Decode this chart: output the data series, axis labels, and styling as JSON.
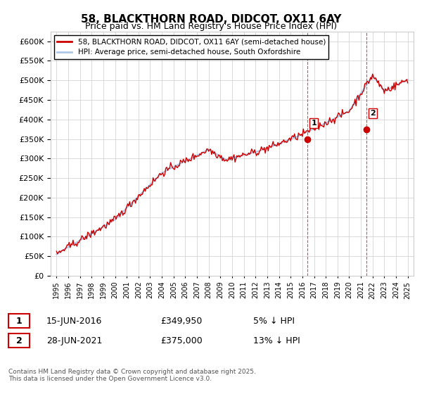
{
  "title": "58, BLACKTHORN ROAD, DIDCOT, OX11 6AY",
  "subtitle": "Price paid vs. HM Land Registry's House Price Index (HPI)",
  "hpi_label": "HPI: Average price, semi-detached house, South Oxfordshire",
  "price_label": "58, BLACKTHORN ROAD, DIDCOT, OX11 6AY (semi-detached house)",
  "legend_entry1": "15-JUN-2016",
  "legend_entry1_price": "£349,950",
  "legend_entry1_note": "5% ↓ HPI",
  "legend_entry2": "28-JUN-2021",
  "legend_entry2_price": "£375,000",
  "legend_entry2_note": "13% ↓ HPI",
  "copyright": "Contains HM Land Registry data © Crown copyright and database right 2025.\nThis data is licensed under the Open Government Licence v3.0.",
  "ylim": [
    0,
    625000
  ],
  "yticks": [
    0,
    50000,
    100000,
    150000,
    200000,
    250000,
    300000,
    350000,
    400000,
    450000,
    500000,
    550000,
    600000
  ],
  "sale1_year": 2016.45,
  "sale1_price": 349950,
  "sale2_year": 2021.49,
  "sale2_price": 375000,
  "hpi_color": "#aec6e8",
  "price_color": "#cc0000",
  "marker_color": "#cc0000",
  "sale_vline_color": "#cc0000",
  "background_color": "#ffffff",
  "plot_bg_color": "#ffffff",
  "grid_color": "#cccccc"
}
